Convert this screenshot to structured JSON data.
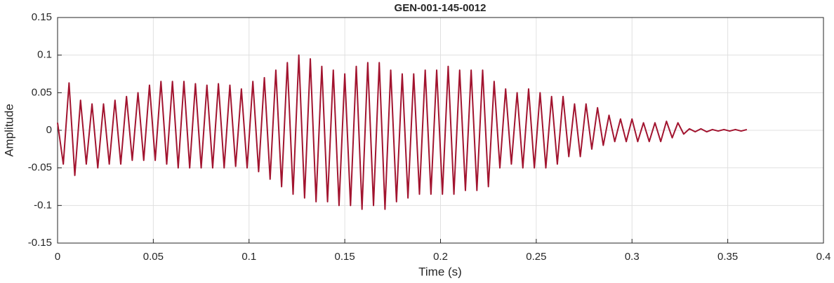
{
  "chart_data": {
    "type": "line",
    "title": "GEN-001-145-0012",
    "xlabel": "Time (s)",
    "ylabel": "Amplitude",
    "color": "#a2142f",
    "grid": true,
    "xlim": [
      0,
      0.4
    ],
    "ylim": [
      -0.15,
      0.15
    ],
    "xticks": [
      0,
      0.05,
      0.1,
      0.15,
      0.2,
      0.25,
      0.3,
      0.35,
      0.4
    ],
    "yticks": [
      -0.15,
      -0.1,
      -0.05,
      0,
      0.05,
      0.1,
      0.15
    ],
    "x": [
      0,
      0.003,
      0.006,
      0.009,
      0.012,
      0.015,
      0.018,
      0.021,
      0.024,
      0.027,
      0.03,
      0.033,
      0.036,
      0.039,
      0.042,
      0.045,
      0.048,
      0.051,
      0.054,
      0.057,
      0.06,
      0.063,
      0.066,
      0.069,
      0.072,
      0.075,
      0.078,
      0.081,
      0.084,
      0.087,
      0.09,
      0.093,
      0.096,
      0.099,
      0.102,
      0.105,
      0.108,
      0.111,
      0.114,
      0.117,
      0.12,
      0.123,
      0.126,
      0.129,
      0.132,
      0.135,
      0.138,
      0.141,
      0.144,
      0.147,
      0.15,
      0.153,
      0.156,
      0.159,
      0.162,
      0.165,
      0.168,
      0.171,
      0.174,
      0.177,
      0.18,
      0.183,
      0.186,
      0.189,
      0.192,
      0.195,
      0.198,
      0.201,
      0.204,
      0.207,
      0.21,
      0.213,
      0.216,
      0.219,
      0.222,
      0.225,
      0.228,
      0.231,
      0.234,
      0.237,
      0.24,
      0.243,
      0.246,
      0.249,
      0.252,
      0.255,
      0.258,
      0.261,
      0.264,
      0.267,
      0.27,
      0.273,
      0.276,
      0.279,
      0.282,
      0.285,
      0.288,
      0.291,
      0.294,
      0.297,
      0.3,
      0.303,
      0.306,
      0.309,
      0.312,
      0.315,
      0.318,
      0.321,
      0.324,
      0.327,
      0.33,
      0.333,
      0.336,
      0.339,
      0.342,
      0.345,
      0.348,
      0.351,
      0.354,
      0.357,
      0.36
    ],
    "values": [
      0.01,
      -0.045,
      0.063,
      -0.06,
      0.04,
      -0.045,
      0.035,
      -0.05,
      0.035,
      -0.045,
      0.04,
      -0.045,
      0.045,
      -0.04,
      0.05,
      -0.04,
      0.06,
      -0.04,
      0.065,
      -0.045,
      0.065,
      -0.05,
      0.065,
      -0.05,
      0.062,
      -0.05,
      0.06,
      -0.05,
      0.062,
      -0.05,
      0.06,
      -0.048,
      0.055,
      -0.05,
      0.065,
      -0.055,
      0.07,
      -0.065,
      0.08,
      -0.075,
      0.09,
      -0.085,
      0.1,
      -0.09,
      0.095,
      -0.095,
      0.085,
      -0.095,
      0.08,
      -0.1,
      0.075,
      -0.1,
      0.085,
      -0.105,
      0.09,
      -0.1,
      0.09,
      -0.105,
      0.08,
      -0.095,
      0.075,
      -0.09,
      0.075,
      -0.085,
      0.08,
      -0.085,
      0.08,
      -0.085,
      0.085,
      -0.085,
      0.08,
      -0.08,
      0.08,
      -0.08,
      0.08,
      -0.075,
      0.065,
      -0.05,
      0.055,
      -0.045,
      0.05,
      -0.05,
      0.055,
      -0.05,
      0.05,
      -0.05,
      0.045,
      -0.045,
      0.045,
      -0.035,
      0.035,
      -0.035,
      0.035,
      -0.025,
      0.03,
      -0.02,
      0.02,
      -0.015,
      0.015,
      -0.015,
      0.015,
      -0.015,
      0.01,
      -0.015,
      0.01,
      -0.015,
      0.012,
      -0.01,
      0.01,
      -0.005,
      0.002,
      -0.002,
      0.002,
      -0.002,
      0.001,
      -0.001,
      0.001,
      -0.001,
      0.001,
      -0.001,
      0.001
    ]
  }
}
